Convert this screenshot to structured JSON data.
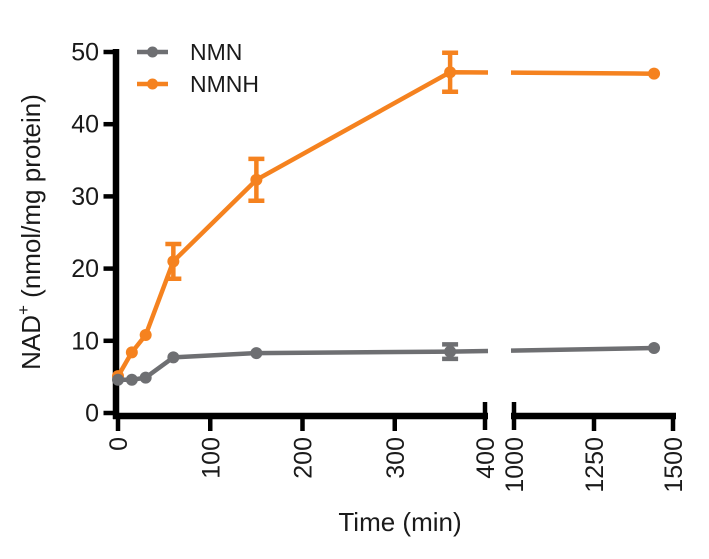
{
  "figure": {
    "background": "#ffffff",
    "text_color": "#1a1a1a",
    "axis_color": "#000000"
  },
  "chart_data": {
    "type": "line",
    "title": "",
    "xlabel": "Time (min)",
    "ylabel": "NAD⁺ (nmol/mg protein)",
    "ylabel_parts": {
      "base": "NAD",
      "sup": "+",
      "rest": " (nmol/mg protein)"
    },
    "x_axis": {
      "broken": true,
      "segment1": {
        "range": [
          0,
          400
        ],
        "ticks": [
          0,
          100,
          200,
          300,
          400
        ]
      },
      "segment2": {
        "range": [
          1000,
          1500
        ],
        "ticks": [
          1000,
          1250,
          1500
        ]
      },
      "tick_label_rotation": -90
    },
    "y_axis": {
      "range": [
        0,
        50
      ],
      "ticks": [
        0,
        10,
        20,
        30,
        40,
        50
      ]
    },
    "grid": false,
    "legend": {
      "position": "top-left",
      "entries": [
        "NMN",
        "NMNH"
      ]
    },
    "series": [
      {
        "name": "NMN",
        "color": "#6E6F72",
        "marker": "circle",
        "x": [
          0,
          15,
          30,
          60,
          150,
          360,
          1440
        ],
        "y": [
          4.6,
          4.6,
          4.9,
          7.7,
          8.3,
          8.5,
          9.0
        ],
        "yerr": [
          0,
          0,
          0,
          0,
          0,
          1.0,
          0
        ]
      },
      {
        "name": "NMNH",
        "color": "#F5821F",
        "marker": "circle",
        "x": [
          0,
          15,
          30,
          60,
          150,
          360,
          1440
        ],
        "y": [
          5.1,
          8.4,
          10.8,
          21.0,
          32.3,
          47.2,
          47.0
        ],
        "yerr": [
          0,
          0,
          0,
          2.4,
          2.9,
          2.7,
          0
        ]
      }
    ]
  }
}
